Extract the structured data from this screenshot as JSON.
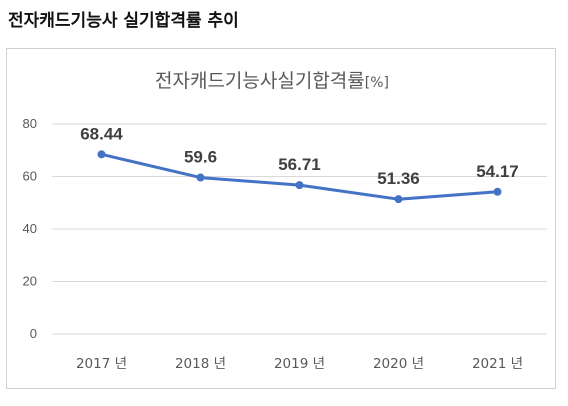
{
  "page": {
    "heading": "전자캐드기능사 실기합격률 추이"
  },
  "colors": {
    "line": "#4472c4",
    "grid": "#d9d9d9",
    "text": "#595959",
    "label": "#404040"
  },
  "chart_data": {
    "type": "line",
    "title": "전자캐드기능사실기합격률",
    "title_unit": "[%]",
    "categories": [
      "2017 년",
      "2018 년",
      "2019 년",
      "2020 년",
      "2021 년"
    ],
    "series": [
      {
        "values": [
          68.44,
          59.6,
          56.71,
          51.36,
          54.17
        ]
      }
    ],
    "data_labels": [
      "68.44",
      "59.6",
      "56.71",
      "51.36",
      "54.17"
    ],
    "yticks": [
      "0",
      "20",
      "40",
      "60",
      "80"
    ],
    "ylim": [
      0,
      80
    ],
    "grid": true,
    "legend": "none",
    "xlabel": "",
    "ylabel": ""
  }
}
